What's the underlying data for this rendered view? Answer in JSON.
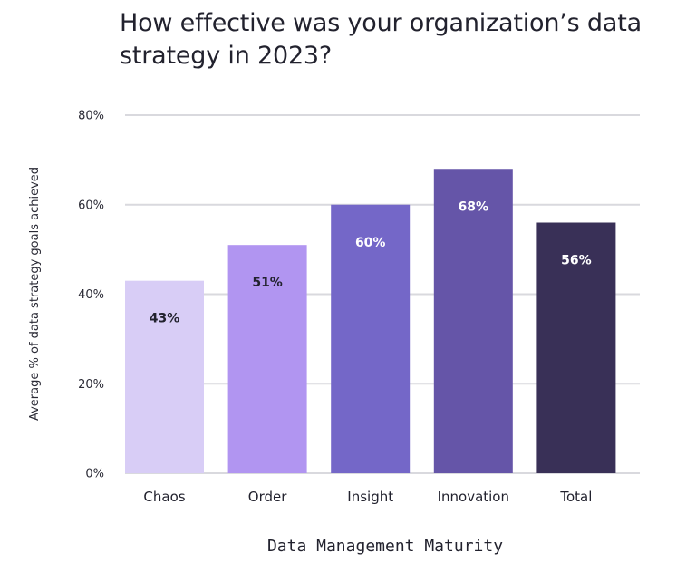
{
  "chart_data": {
    "type": "bar",
    "title": "How effective was your organization’s data strategy in 2023?",
    "xlabel": "Data Management Maturity",
    "ylabel": "Average % of data strategy goals achieved",
    "categories": [
      "Chaos",
      "Order",
      "Insight",
      "Innovation",
      "Total"
    ],
    "values": [
      43,
      51,
      60,
      68,
      56
    ],
    "value_labels": [
      "43%",
      "51%",
      "60%",
      "68%",
      "56%"
    ],
    "bar_colors": [
      "#d8cdf6",
      "#b195f1",
      "#7467c8",
      "#6555a8",
      "#393057"
    ],
    "value_label_colors": [
      "#22222e",
      "#22222e",
      "#ffffff",
      "#ffffff",
      "#ffffff"
    ],
    "ylim": [
      0,
      80
    ],
    "yticks": [
      0,
      20,
      40,
      60,
      80
    ],
    "ytick_labels": [
      "0%",
      "20%",
      "40%",
      "60%",
      "80%"
    ],
    "grid": true,
    "legend": "none"
  }
}
